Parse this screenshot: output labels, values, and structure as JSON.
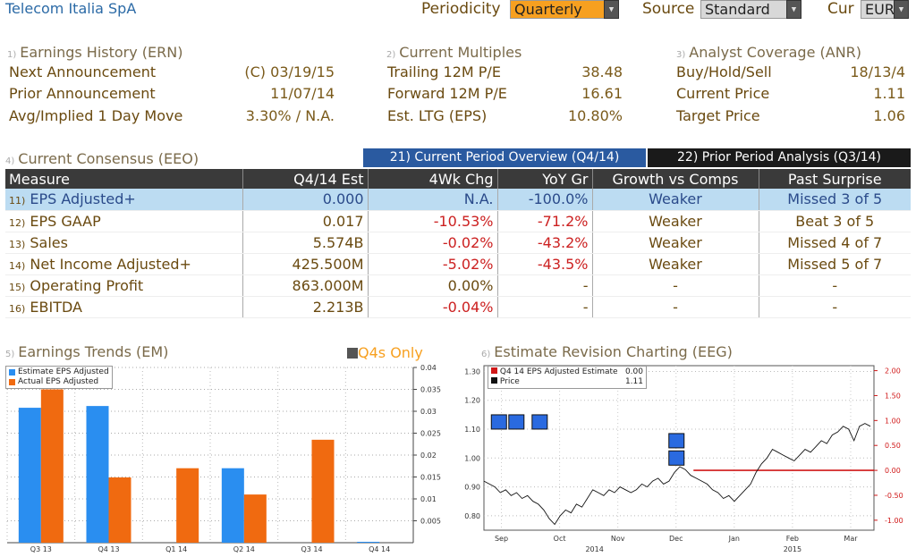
{
  "header": {
    "company": "Telecom Italia SpA",
    "periodicity_label": "Periodicity",
    "periodicity_value": "Quarterly",
    "source_label": "Source",
    "source_value": "Standard",
    "cur_label": "Cur",
    "cur_value": "EUR"
  },
  "earnings_history": {
    "num": "1)",
    "title": "Earnings History (ERN)",
    "rows": [
      {
        "label": "Next Announcement",
        "value": "(C)  03/19/15"
      },
      {
        "label": "Prior Announcement",
        "value": "11/07/14"
      },
      {
        "label": "Avg/Implied 1 Day Move",
        "value": "3.30% / N.A."
      }
    ]
  },
  "current_multiples": {
    "num": "2)",
    "title": "Current Multiples",
    "rows": [
      {
        "label": "Trailing 12M P/E",
        "value": "38.48"
      },
      {
        "label": "Forward 12M P/E",
        "value": "16.61"
      },
      {
        "label": "Est. LTG (EPS)",
        "value": "10.80%"
      }
    ]
  },
  "analyst_coverage": {
    "num": "3)",
    "title": "Analyst Coverage (ANR)",
    "rows": [
      {
        "label": "Buy/Hold/Sell",
        "value": "18/13/4"
      },
      {
        "label": "Current Price",
        "value": "1.11"
      },
      {
        "label": "Target Price",
        "value": "1.06"
      }
    ]
  },
  "consensus": {
    "num": "4)",
    "title": "Current Consensus (EEO)",
    "tab_current": "21) Current Period Overview (Q4/14)",
    "tab_prior": "22) Prior Period Analysis (Q3/14)",
    "columns": [
      "Measure",
      "Q4/14 Est",
      "4Wk Chg",
      "YoY Gr",
      "Growth vs Comps",
      "Past Surprise"
    ],
    "rows": [
      {
        "n": "11)",
        "measure": "EPS Adjusted+",
        "est": "0.000",
        "chg": "N.A.",
        "yoy": "-100.0%",
        "growth": "Weaker",
        "surprise": "Missed 3 of 5",
        "chg_neg": false,
        "yoy_neg": true
      },
      {
        "n": "12)",
        "measure": "EPS GAAP",
        "est": "0.017",
        "chg": "-10.53%",
        "yoy": "-71.2%",
        "growth": "Weaker",
        "surprise": "Beat 3 of 5",
        "chg_neg": true,
        "yoy_neg": true
      },
      {
        "n": "13)",
        "measure": "Sales",
        "est": "5.574B",
        "chg": "-0.02%",
        "yoy": "-43.2%",
        "growth": "Weaker",
        "surprise": "Missed 4 of 7",
        "chg_neg": true,
        "yoy_neg": true
      },
      {
        "n": "14)",
        "measure": "Net Income Adjusted+",
        "est": "425.500M",
        "chg": "-5.02%",
        "yoy": "-43.5%",
        "growth": "Weaker",
        "surprise": "Missed 5 of 7",
        "chg_neg": true,
        "yoy_neg": true
      },
      {
        "n": "15)",
        "measure": "Operating Profit",
        "est": "863.000M",
        "chg": "0.00%",
        "yoy": "-",
        "growth": "-",
        "surprise": "-",
        "chg_neg": false,
        "yoy_neg": false
      },
      {
        "n": "16)",
        "measure": "EBITDA",
        "est": "2.213B",
        "chg": "-0.04%",
        "yoy": "-",
        "growth": "-",
        "surprise": "-",
        "chg_neg": true,
        "yoy_neg": false
      }
    ]
  },
  "trends": {
    "num": "5)",
    "title": "Earnings Trends (EM)",
    "q4s_label": "Q4s Only"
  },
  "revision": {
    "num": "6)",
    "title": "Estimate Revision Charting (EEG)"
  },
  "chart_data": [
    {
      "type": "bar",
      "categories": [
        "Q3 13",
        "Q4 13",
        "Q1 14",
        "Q2 14",
        "Q3 14",
        "Q4 14"
      ],
      "series": [
        {
          "name": "Estimate EPS Adjusted",
          "color": "#2a8ef0",
          "values": [
            0.0308,
            0.0312,
            null,
            0.017,
            null,
            0.0
          ]
        },
        {
          "name": "Actual EPS Adjusted",
          "color": "#f06a10",
          "values": [
            0.035,
            0.0149,
            0.017,
            0.011,
            0.0235,
            null
          ]
        }
      ],
      "y_ticks": [
        "0.04",
        "0.035",
        "0.03",
        "0.025",
        "0.02",
        "0.015",
        "0.01",
        "0.005"
      ],
      "ylim": [
        0,
        0.04
      ]
    },
    {
      "type": "line",
      "x_ticks": [
        "Sep",
        "Oct",
        "Nov",
        "Dec",
        "Jan",
        "Feb",
        "Mar"
      ],
      "year_labels": [
        "2014",
        "2015"
      ],
      "left_ticks": [
        "1.30",
        "1.20",
        "1.10",
        "1.00",
        "0.90",
        "0.80"
      ],
      "right_ticks": [
        "2.00",
        "1.50",
        "1.00",
        "0.50",
        "0.00",
        "-0.50",
        "-1.00"
      ],
      "ylim_price": [
        0.75,
        1.32
      ],
      "ylim_estimate": [
        -1.2,
        2.1
      ],
      "series": [
        {
          "name": "Q4 14 EPS Adjusted Estimate",
          "last": "0.00",
          "color": "#d01818",
          "start_month": 3.6,
          "value": 0.0
        },
        {
          "name": "Price",
          "last": "1.11",
          "color": "#111111",
          "values": [
            0.92,
            0.91,
            0.9,
            0.88,
            0.89,
            0.87,
            0.88,
            0.86,
            0.87,
            0.85,
            0.84,
            0.82,
            0.79,
            0.77,
            0.8,
            0.82,
            0.81,
            0.84,
            0.83,
            0.86,
            0.89,
            0.88,
            0.87,
            0.89,
            0.88,
            0.9,
            0.89,
            0.88,
            0.89,
            0.91,
            0.9,
            0.92,
            0.93,
            0.91,
            0.92,
            0.95,
            0.97,
            0.96,
            0.94,
            0.93,
            0.92,
            0.91,
            0.89,
            0.88,
            0.86,
            0.87,
            0.85,
            0.87,
            0.89,
            0.91,
            0.95,
            0.98,
            1.0,
            1.03,
            1.02,
            1.01,
            1.0,
            0.99,
            1.01,
            1.03,
            1.02,
            1.04,
            1.06,
            1.05,
            1.08,
            1.09,
            1.11,
            1.1,
            1.06,
            1.11,
            1.12,
            1.11
          ]
        }
      ]
    }
  ]
}
